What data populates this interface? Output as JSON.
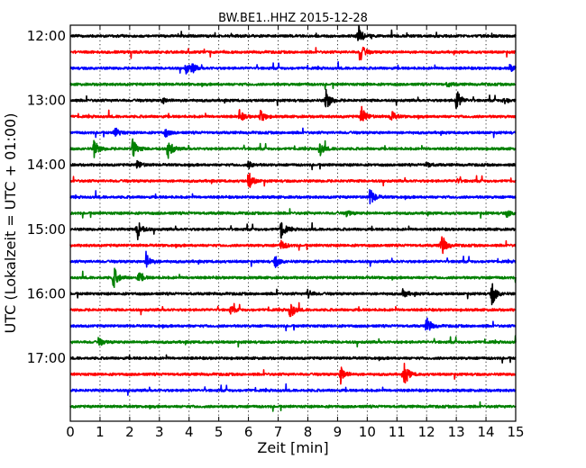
{
  "chart_data": {
    "type": "line",
    "title": "BW.BE1..HHZ 2015-12-28",
    "xlabel": "Zeit  [min]",
    "ylabel": "UTC (Lokalzeit = UTC + 01:00)",
    "xlim": [
      0,
      15
    ],
    "xticks": [
      "0",
      "1",
      "2",
      "3",
      "4",
      "5",
      "6",
      "7",
      "8",
      "9",
      "10",
      "11",
      "12",
      "13",
      "14",
      "15"
    ],
    "yticks": [
      "12:00",
      "13:00",
      "14:00",
      "15:00",
      "16:00",
      "17:00"
    ],
    "grid": "vertical dotted",
    "row_interval_min": 15,
    "row_start_utc": "12:00",
    "row_colors": [
      "#000000",
      "#ff0000",
      "#0000ff",
      "#008000"
    ],
    "series": [
      {
        "row_start": "12:00",
        "events": [
          [
            9.7,
            0.9
          ]
        ]
      },
      {
        "row_start": "12:15",
        "events": [
          [
            9.75,
            0.9
          ]
        ]
      },
      {
        "row_start": "12:30",
        "events": [
          [
            3.9,
            0.45
          ],
          [
            4.1,
            0.35
          ],
          [
            14.8,
            0.3
          ]
        ]
      },
      {
        "row_start": "12:45",
        "events": [
          [
            12.7,
            0.2
          ]
        ]
      },
      {
        "row_start": "13:00",
        "events": [
          [
            3.1,
            0.25
          ],
          [
            8.6,
            1.0
          ],
          [
            13.0,
            1.0
          ],
          [
            14.6,
            0.3
          ]
        ]
      },
      {
        "row_start": "13:15",
        "events": [
          [
            5.7,
            0.5
          ],
          [
            6.4,
            0.55
          ],
          [
            9.8,
            0.9
          ],
          [
            10.8,
            0.5
          ]
        ]
      },
      {
        "row_start": "13:30",
        "events": [
          [
            1.5,
            0.45
          ],
          [
            3.2,
            0.35
          ]
        ]
      },
      {
        "row_start": "13:45",
        "events": [
          [
            0.8,
            0.8
          ],
          [
            2.1,
            0.8
          ],
          [
            3.3,
            0.9
          ],
          [
            8.4,
            0.6
          ]
        ]
      },
      {
        "row_start": "14:00",
        "events": [
          [
            2.25,
            0.35
          ],
          [
            6.0,
            0.3
          ],
          [
            12.0,
            0.25
          ]
        ]
      },
      {
        "row_start": "14:15",
        "events": [
          [
            6.0,
            0.8
          ],
          [
            13.0,
            0.2
          ]
        ]
      },
      {
        "row_start": "14:30",
        "events": [
          [
            10.1,
            0.8
          ]
        ]
      },
      {
        "row_start": "14:45",
        "events": [
          [
            9.3,
            0.25
          ],
          [
            14.7,
            0.3
          ]
        ]
      },
      {
        "row_start": "15:00",
        "events": [
          [
            2.25,
            1.0
          ],
          [
            7.1,
            0.8
          ]
        ]
      },
      {
        "row_start": "15:15",
        "events": [
          [
            7.1,
            0.45
          ],
          [
            12.5,
            1.0
          ]
        ]
      },
      {
        "row_start": "15:30",
        "events": [
          [
            2.55,
            0.8
          ],
          [
            6.9,
            0.5
          ]
        ]
      },
      {
        "row_start": "15:45",
        "events": [
          [
            1.45,
            1.0
          ],
          [
            2.3,
            0.45
          ]
        ]
      },
      {
        "row_start": "16:00",
        "events": [
          [
            8.0,
            0.35
          ],
          [
            11.2,
            0.4
          ],
          [
            14.2,
            1.0
          ]
        ]
      },
      {
        "row_start": "16:15",
        "events": [
          [
            5.4,
            0.3
          ],
          [
            7.4,
            0.8
          ]
        ]
      },
      {
        "row_start": "16:30",
        "events": [
          [
            12.0,
            0.75
          ]
        ]
      },
      {
        "row_start": "16:45",
        "events": [
          [
            0.95,
            0.35
          ]
        ]
      },
      {
        "row_start": "17:00",
        "events": []
      },
      {
        "row_start": "17:15",
        "events": [
          [
            9.1,
            0.8
          ],
          [
            11.25,
            1.0
          ]
        ]
      },
      {
        "row_start": "17:30",
        "events": []
      },
      {
        "row_start": "17:45",
        "events": []
      }
    ]
  }
}
